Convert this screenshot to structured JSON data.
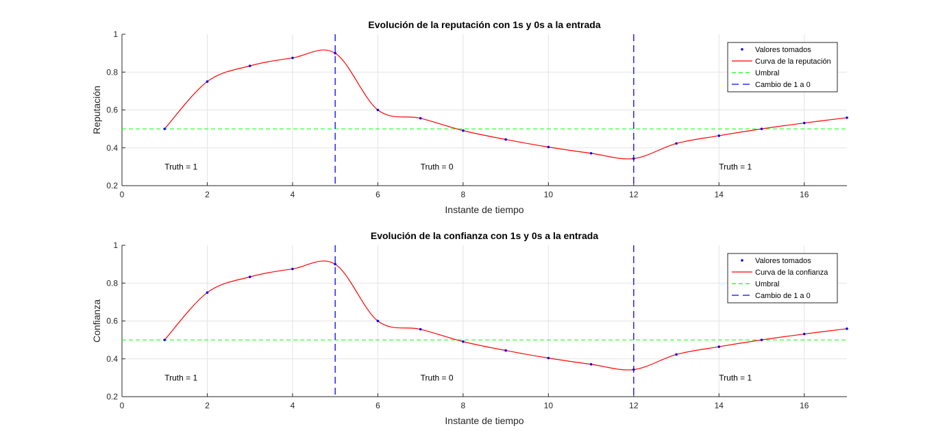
{
  "chart_data": [
    {
      "type": "line",
      "title": "Evolución de la reputación con 1s y 0s a la entrada",
      "xlabel": "Instante de tiempo",
      "ylabel": "Reputación",
      "xlim": [
        0,
        17
      ],
      "ylim": [
        0.2,
        1
      ],
      "xticks": [
        0,
        2,
        4,
        6,
        8,
        10,
        12,
        14,
        16
      ],
      "yticks": [
        0.2,
        0.4,
        0.6,
        0.8,
        1
      ],
      "ytick_labels": [
        "0.2",
        "0.4",
        "0.6",
        "0.8",
        "1"
      ],
      "grid": true,
      "legend_position": "top-right",
      "threshold": 0.5,
      "switch_x": [
        5,
        12
      ],
      "series": [
        {
          "name": "Valores tomados",
          "style": "points",
          "color": "#0000ff",
          "x": [
            1,
            2,
            3,
            4,
            5,
            6,
            7,
            8,
            9,
            10,
            11,
            12,
            13,
            14,
            15,
            16,
            17
          ],
          "values": [
            0.5,
            0.75,
            0.833,
            0.875,
            0.9,
            0.6,
            0.556,
            0.491,
            0.444,
            0.404,
            0.371,
            0.343,
            0.423,
            0.464,
            0.5,
            0.531,
            0.559
          ]
        },
        {
          "name": "Curva de la reputación",
          "style": "line",
          "color": "#ff0000",
          "x": [
            1,
            2,
            3,
            4,
            5,
            6,
            7,
            8,
            9,
            10,
            11,
            12,
            13,
            14,
            15,
            16,
            17
          ],
          "values": [
            0.5,
            0.75,
            0.833,
            0.875,
            0.9,
            0.6,
            0.556,
            0.491,
            0.444,
            0.404,
            0.371,
            0.343,
            0.423,
            0.464,
            0.5,
            0.531,
            0.559
          ]
        },
        {
          "name": "Umbral",
          "style": "dashed",
          "color": "#00ff00"
        },
        {
          "name": "Cambio de 1 a 0",
          "style": "dashed",
          "color": "#0000ff"
        }
      ],
      "annotations": [
        {
          "text": "Truth = 1",
          "x": 1,
          "y": 0.3
        },
        {
          "text": "Truth = 0",
          "x": 7,
          "y": 0.3
        },
        {
          "text": "Truth = 1",
          "x": 14,
          "y": 0.3
        }
      ]
    },
    {
      "type": "line",
      "title": "Evolución de la confianza con 1s y 0s a la entrada",
      "xlabel": "Instante de tiempo",
      "ylabel": "Confianza",
      "xlim": [
        0,
        17
      ],
      "ylim": [
        0.2,
        1
      ],
      "xticks": [
        0,
        2,
        4,
        6,
        8,
        10,
        12,
        14,
        16
      ],
      "yticks": [
        0.2,
        0.4,
        0.6,
        0.8,
        1
      ],
      "ytick_labels": [
        "0.2",
        "0.4",
        "0.6",
        "0.8",
        "1"
      ],
      "grid": true,
      "legend_position": "top-right",
      "threshold": 0.5,
      "switch_x": [
        5,
        12
      ],
      "series": [
        {
          "name": "Valores tomados",
          "style": "points",
          "color": "#0000ff",
          "x": [
            1,
            2,
            3,
            4,
            5,
            6,
            7,
            8,
            9,
            10,
            11,
            12,
            13,
            14,
            15,
            16,
            17
          ],
          "values": [
            0.5,
            0.75,
            0.833,
            0.875,
            0.9,
            0.6,
            0.556,
            0.491,
            0.444,
            0.404,
            0.371,
            0.343,
            0.423,
            0.464,
            0.5,
            0.531,
            0.559
          ]
        },
        {
          "name": "Curva de la confianza",
          "style": "line",
          "color": "#ff0000",
          "x": [
            1,
            2,
            3,
            4,
            5,
            6,
            7,
            8,
            9,
            10,
            11,
            12,
            13,
            14,
            15,
            16,
            17
          ],
          "values": [
            0.5,
            0.75,
            0.833,
            0.875,
            0.9,
            0.6,
            0.556,
            0.491,
            0.444,
            0.404,
            0.371,
            0.343,
            0.423,
            0.464,
            0.5,
            0.531,
            0.559
          ]
        },
        {
          "name": "Umbral",
          "style": "dashed",
          "color": "#00ff00"
        },
        {
          "name": "Cambio de 1 a 0",
          "style": "dashed",
          "color": "#0000ff"
        }
      ],
      "annotations": [
        {
          "text": "Truth = 1",
          "x": 1,
          "y": 0.3
        },
        {
          "text": "Truth = 0",
          "x": 7,
          "y": 0.3
        },
        {
          "text": "Truth = 1",
          "x": 14,
          "y": 0.3
        }
      ]
    }
  ]
}
